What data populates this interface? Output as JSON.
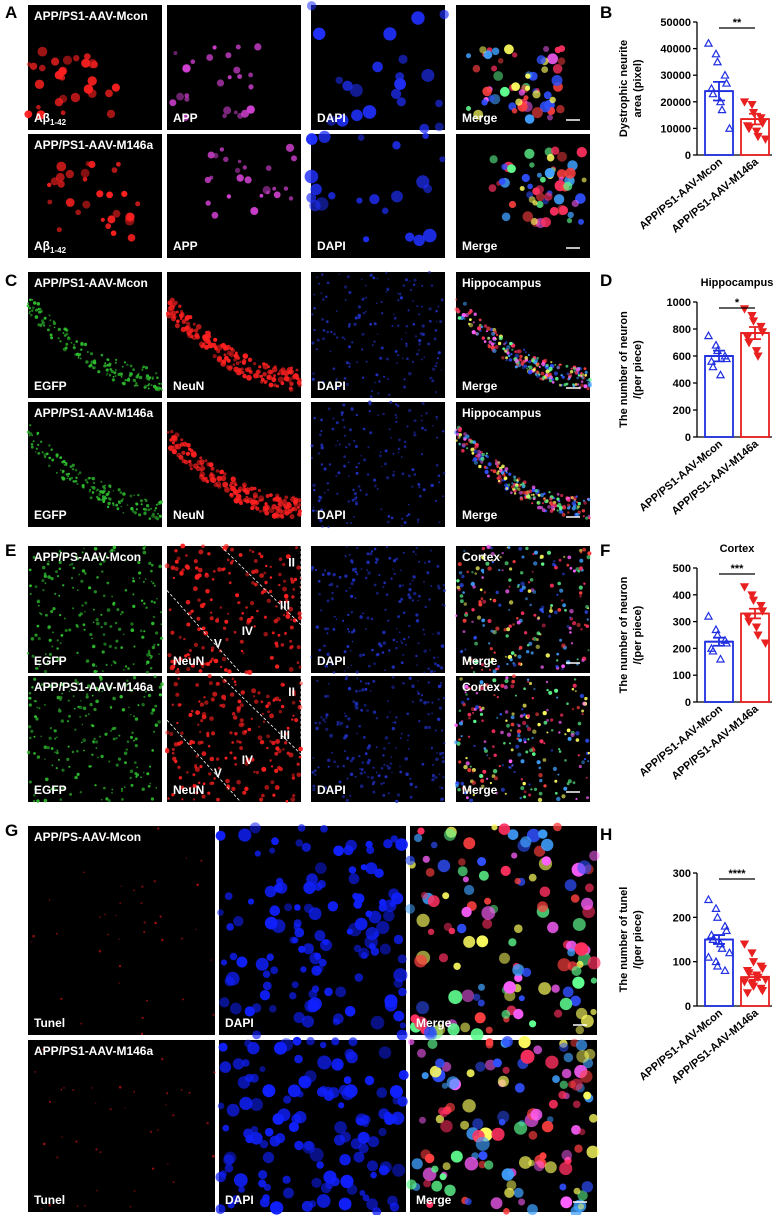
{
  "image_panels": [
    {
      "letter": "A",
      "rows": [
        {
          "group": "APP/PS1-AAV-Mcon",
          "channels": [
            {
              "main": "Aβ",
              "sub": "1-42"
            },
            "APP",
            "DAPI",
            "Merge"
          ]
        },
        {
          "group": "APP/PS1-AAV-M146a",
          "channels": [
            {
              "main": "Aβ",
              "sub": "1-42"
            },
            "APP",
            "DAPI",
            "Merge"
          ]
        }
      ]
    },
    {
      "letter": "C",
      "rows": [
        {
          "group": "APP/PS1-AAV-Mcon",
          "channels": [
            "EGFP",
            "NeuN",
            "DAPI",
            "Merge"
          ],
          "region": "Hippocampus"
        },
        {
          "group": "APP/PS1-AAV-M146a",
          "channels": [
            "EGFP",
            "NeuN",
            "DAPI",
            "Merge"
          ],
          "region": "Hippocampus"
        }
      ]
    },
    {
      "letter": "E",
      "rows": [
        {
          "group": "APP/PS-AAV-Mcon",
          "channels": [
            "EGFP",
            "NeuN",
            "DAPI",
            "Merge"
          ],
          "region": "Cortex",
          "layers": [
            "II",
            "III",
            "IV",
            "V"
          ]
        },
        {
          "group": "APP/PS1-AAV-M146a",
          "channels": [
            "EGFP",
            "NeuN",
            "DAPI",
            "Merge"
          ],
          "region": "Cortex",
          "layers": [
            "II",
            "III",
            "IV",
            "V"
          ]
        }
      ]
    },
    {
      "letter": "G",
      "rows": [
        {
          "group": "APP/PS-AAV-Mcon",
          "channels": [
            "Tunel",
            "DAPI",
            "Merge"
          ]
        },
        {
          "group": "APP/PS1-AAV-M146a",
          "channels": [
            "Tunel",
            "DAPI",
            "Merge"
          ]
        }
      ]
    }
  ],
  "chart_data": [
    {
      "label": "B",
      "type": "bar",
      "ylabel": [
        "Dystrophic neurite",
        "area (pixel)"
      ],
      "categories": [
        "APP/PS1-AAV-Mcon",
        "APP/PS1-AAV-M146a"
      ],
      "values": [
        24000,
        13500
      ],
      "errors": [
        3500,
        2000
      ],
      "colors": [
        "#1f2fe0",
        "#e82020"
      ],
      "markers": [
        "triangle-up",
        "triangle-down"
      ],
      "points": [
        [
          42000,
          38000,
          35000,
          30000,
          27000,
          25000,
          23000,
          20000,
          17000,
          10000
        ],
        [
          20000,
          19000,
          16000,
          14000,
          12000,
          11000,
          10000,
          9000,
          7000,
          6000
        ]
      ],
      "ylim": [
        0,
        50000
      ],
      "yticks": [
        0,
        10000,
        20000,
        30000,
        40000,
        50000
      ],
      "significance": "**"
    },
    {
      "label": "D",
      "type": "bar",
      "title": "Hippocampus",
      "ylabel": [
        "The number of neuron",
        "/(per piece)"
      ],
      "categories": [
        "APP/PS1-AAV-Mcon",
        "APP/PS1-AAV-M146a"
      ],
      "values": [
        600,
        770
      ],
      "errors": [
        40,
        45
      ],
      "colors": [
        "#1f2fe0",
        "#e82020"
      ],
      "markers": [
        "triangle-up",
        "triangle-down"
      ],
      "points": [
        [
          750,
          680,
          640,
          600,
          580,
          560,
          520,
          460
        ],
        [
          950,
          900,
          860,
          820,
          780,
          740,
          700,
          640,
          600
        ]
      ],
      "ylim": [
        0,
        1000
      ],
      "yticks": [
        0,
        200,
        400,
        600,
        800,
        1000
      ],
      "significance": "*"
    },
    {
      "label": "F",
      "type": "bar",
      "title": "Cortex",
      "ylabel": [
        "The number of neuron",
        "/(per piece)"
      ],
      "categories": [
        "APP/PS1-AAV-Mcon",
        "APP/PS1-AAV-M146a"
      ],
      "values": [
        225,
        330
      ],
      "errors": [
        15,
        18
      ],
      "colors": [
        "#1f2fe0",
        "#e82020"
      ],
      "markers": [
        "triangle-up",
        "triangle-down"
      ],
      "points": [
        [
          320,
          270,
          250,
          230,
          220,
          200,
          190,
          160
        ],
        [
          430,
          400,
          380,
          360,
          340,
          320,
          300,
          280,
          250,
          220
        ]
      ],
      "ylim": [
        0,
        500
      ],
      "yticks": [
        0,
        100,
        200,
        300,
        400,
        500
      ],
      "significance": "***"
    },
    {
      "label": "H",
      "type": "bar",
      "ylabel": [
        "The number of tunel",
        "/(per piece)"
      ],
      "categories": [
        "APP/PS1-AAV-Mcon",
        "APP/PS1-AAV-M146a"
      ],
      "values": [
        150,
        65
      ],
      "errors": [
        10,
        6
      ],
      "colors": [
        "#1f2fe0",
        "#e82020"
      ],
      "markers": [
        "triangle-up",
        "triangle-down"
      ],
      "points": [
        [
          240,
          220,
          200,
          180,
          170,
          160,
          150,
          140,
          130,
          120,
          110,
          100,
          90,
          80
        ],
        [
          140,
          120,
          100,
          90,
          85,
          80,
          75,
          70,
          65,
          60,
          55,
          50,
          45,
          40,
          35,
          30
        ]
      ],
      "ylim": [
        0,
        300
      ],
      "yticks": [
        0,
        100,
        200,
        300
      ],
      "significance": "****"
    }
  ]
}
